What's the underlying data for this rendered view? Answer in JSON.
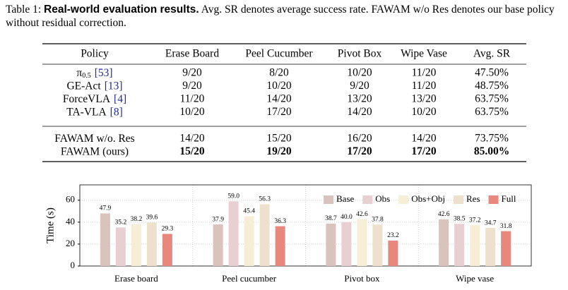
{
  "caption": {
    "label": "Table 1:",
    "bold": "Real-world evaluation results.",
    "text": "Avg. SR denotes average success rate. FAWAM w/o Res denotes our base policy without residual correction."
  },
  "table": {
    "header": [
      "Policy",
      "Erase Board",
      "Peel Cucumber",
      "Pivot Box",
      "Wipe Vase",
      "Avg. SR"
    ],
    "groups": [
      [
        {
          "policy": "π",
          "sub": "0.5",
          "cite": "[53]",
          "cells": [
            "9/20",
            "8/20",
            "10/20",
            "11/20",
            "47.50%"
          ],
          "bold": false
        },
        {
          "policy": "GE-Act",
          "cite": "[13]",
          "cells": [
            "9/20",
            "10/20",
            "9/20",
            "11/20",
            "48.75%"
          ],
          "bold": false
        },
        {
          "policy": "ForceVLA",
          "cite": "[4]",
          "cells": [
            "11/20",
            "14/20",
            "13/20",
            "13/20",
            "63.75%"
          ],
          "bold": false
        },
        {
          "policy": "TA-VLA",
          "cite": "[8]",
          "cells": [
            "10/20",
            "17/20",
            "14/20",
            "10/20",
            "63.75%"
          ],
          "bold": false
        }
      ],
      [
        {
          "policy": "FAWAM w/o. Res",
          "cells": [
            "14/20",
            "15/20",
            "16/20",
            "14/20",
            "73.75%"
          ],
          "bold": false
        },
        {
          "policy": "FAWAM (ours)",
          "cells": [
            "15/20",
            "19/20",
            "17/20",
            "17/20",
            "85.00%"
          ],
          "bold": true
        }
      ]
    ]
  },
  "chart_data": {
    "type": "bar",
    "ylabel": "Time (s)",
    "categories": [
      "Erase board",
      "Peel cucumber",
      "Pivot box",
      "Wipe vase"
    ],
    "series": [
      {
        "name": "Base",
        "color": "#d8c4bc",
        "values": [
          47.9,
          37.9,
          38.7,
          42.6
        ],
        "value_labels": [
          "47.9",
          "37.9",
          "38.7",
          "42.6"
        ]
      },
      {
        "name": "Obs",
        "color": "#e8d0d2",
        "values": [
          35.2,
          59.0,
          40.0,
          38.5
        ],
        "value_labels": [
          "35.2",
          "59.0",
          "40.0",
          "38.5"
        ]
      },
      {
        "name": "Obs+Obj",
        "color": "#f6eed6",
        "values": [
          38.2,
          45.4,
          42.6,
          37.2
        ],
        "value_labels": [
          "38.2",
          "45.4",
          "42.6",
          "37.2"
        ]
      },
      {
        "name": "Res",
        "color": "#eee1cb",
        "values": [
          39.6,
          56.3,
          37.8,
          34.7
        ],
        "value_labels": [
          "39.6",
          "56.3",
          "37.8",
          "34.7"
        ]
      },
      {
        "name": "Full",
        "color": "#e8877d",
        "values": [
          29.3,
          36.3,
          23.2,
          31.8
        ],
        "value_labels": [
          "29.3",
          "36.3",
          "23.2",
          "31.8"
        ]
      }
    ],
    "ylim": [
      0,
      74
    ],
    "yticks": [
      0,
      20,
      40,
      60
    ],
    "grid": true,
    "legend": "upper right"
  }
}
